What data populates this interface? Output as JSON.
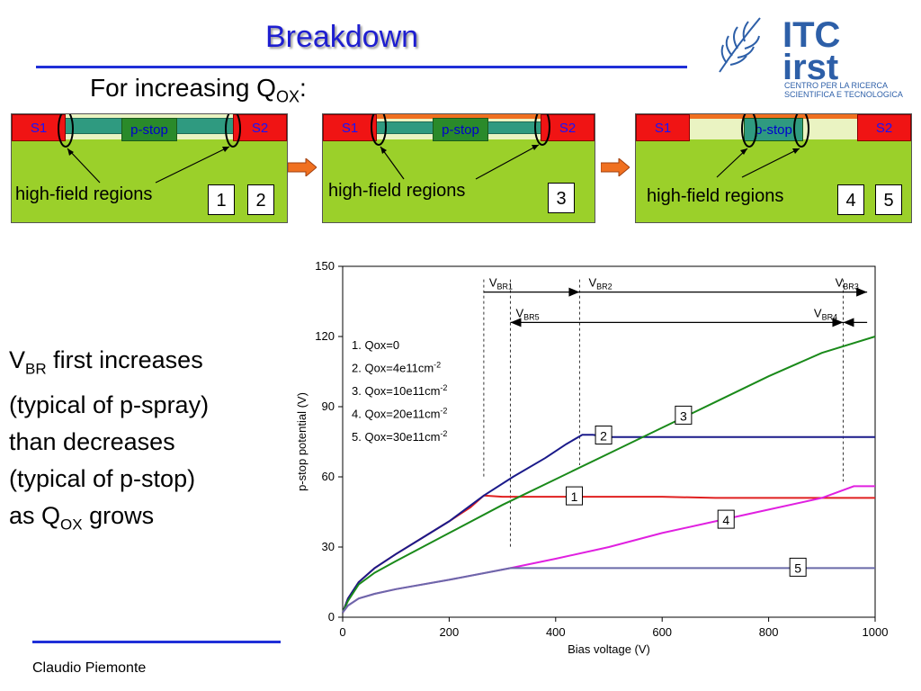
{
  "title": "Breakdown",
  "subtitle": {
    "text": "For increasing Q",
    "sub": "OX",
    "suffix": ":"
  },
  "logo": {
    "line1": "ITC",
    "line2": "irst",
    "tagline1": "CENTRO PER LA RICERCA",
    "tagline2": "SCIENTIFICA E TECNOLOGICA"
  },
  "panels": [
    {
      "s1": "S1",
      "s2": "S2",
      "pstop": "p-stop",
      "label": "high-field regions",
      "numbers": [
        "1",
        "2"
      ]
    },
    {
      "s1": "S1",
      "s2": "S2",
      "pstop": "p-stop",
      "label": "high-field regions",
      "numbers": [
        "3"
      ]
    },
    {
      "s1": "S1",
      "s2": "S2",
      "pstop": "p-stop",
      "label": "high-field regions",
      "numbers": [
        "4",
        "5"
      ]
    }
  ],
  "body": {
    "vbr_main": "V",
    "vbr_sub": "BR",
    "line1_rest": " first increases",
    "line2": "(typical of p-spray)",
    "line3": "than decreases",
    "line4": "(typical of p-stop)",
    "line5_pre": "as Q",
    "line5_sub": "OX",
    "line5_post": " grows"
  },
  "footer": {
    "author": "Claudio Piemonte"
  },
  "colors": {
    "title": "#1f1fd0",
    "rule": "#1f2fd8",
    "s_region": "#f01414",
    "substrate": "#9bd02a",
    "arrow": "#f07020"
  },
  "chart_data": {
    "type": "line",
    "xlabel": "Bias voltage (V)",
    "ylabel": "p-stop potential (V)",
    "xlim": [
      0,
      1000
    ],
    "ylim": [
      0,
      150
    ],
    "xticks": [
      0,
      200,
      400,
      600,
      800,
      1000
    ],
    "yticks": [
      0,
      30,
      60,
      90,
      120,
      150
    ],
    "grid": false,
    "legend": [
      {
        "pre": "1. Qox=0",
        "sup": ""
      },
      {
        "pre": "2. Qox=4e11cm",
        "sup": "-2"
      },
      {
        "pre": "3. Qox=10e11cm",
        "sup": "-2"
      },
      {
        "pre": "4. Qox=20e11cm",
        "sup": "-2"
      },
      {
        "pre": "5. Qox=30e11cm",
        "sup": "-2"
      }
    ],
    "legend_position": "top-left",
    "series": [
      {
        "label": "1",
        "color": "#e02020",
        "x": [
          0,
          10,
          30,
          60,
          100,
          150,
          200,
          240,
          265,
          300,
          400,
          500,
          600,
          700,
          800,
          900,
          1000
        ],
        "y": [
          2,
          8,
          15,
          21,
          27,
          34,
          41,
          47,
          52,
          51.5,
          51.5,
          51.5,
          51.5,
          51,
          51,
          51,
          51
        ],
        "label_at": [
          435,
          51.5
        ]
      },
      {
        "label": "2",
        "color": "#1a1a8a",
        "x": [
          0,
          10,
          30,
          60,
          100,
          150,
          200,
          265,
          320,
          380,
          420,
          450,
          470,
          500,
          600,
          700,
          800,
          900,
          1000
        ],
        "y": [
          2,
          8,
          15,
          21,
          27,
          34,
          41,
          52,
          60,
          68,
          74,
          78,
          78,
          77,
          77,
          77,
          77,
          77,
          77
        ],
        "label_at": [
          490,
          77.5
        ]
      },
      {
        "label": "3",
        "color": "#1a8a1a",
        "x": [
          0,
          10,
          30,
          60,
          100,
          150,
          200,
          300,
          400,
          500,
          600,
          700,
          800,
          900,
          1000
        ],
        "y": [
          2,
          7,
          14,
          19,
          24,
          30,
          36,
          48,
          59,
          70,
          81,
          92,
          103,
          113,
          120
        ],
        "label_at": [
          640,
          86
        ]
      },
      {
        "label": "4",
        "color": "#e020e0",
        "x": [
          0,
          10,
          30,
          60,
          100,
          200,
          315,
          400,
          500,
          600,
          700,
          800,
          900,
          960,
          1000
        ],
        "y": [
          2,
          5,
          8,
          10,
          12,
          16,
          21,
          25,
          30,
          36,
          41,
          46,
          51,
          56,
          56
        ],
        "label_at": [
          720,
          41.5
        ]
      },
      {
        "label": "5",
        "color": "#6a6aa8",
        "x": [
          0,
          10,
          30,
          60,
          100,
          200,
          315,
          400,
          500,
          600,
          700,
          800,
          900,
          1000
        ],
        "y": [
          2,
          5,
          8,
          10,
          12,
          16,
          21,
          21,
          21,
          21,
          21,
          21,
          21,
          21
        ],
        "label_at": [
          855,
          21
        ]
      }
    ],
    "annotations": [
      {
        "main": "V",
        "sub": "BR1",
        "x_from": 265,
        "x_to": 445,
        "y": 139,
        "dir": "right"
      },
      {
        "main": "V",
        "sub": "BR2",
        "x_from": 445,
        "x_to": 985,
        "y": 139,
        "dir": "right"
      },
      {
        "main": "V",
        "sub": "BR3",
        "x_from": 0,
        "x_to": 0,
        "y": 139,
        "dir": "none"
      },
      {
        "main": "V",
        "sub": "BR5",
        "x_from": 315,
        "x_to": 940,
        "y": 126,
        "dir": "both"
      },
      {
        "main": "V",
        "sub": "BR4",
        "x_from": 940,
        "x_to": 985,
        "y": 126,
        "dir": "left"
      }
    ],
    "vlines": [
      265,
      445,
      315,
      940
    ]
  }
}
